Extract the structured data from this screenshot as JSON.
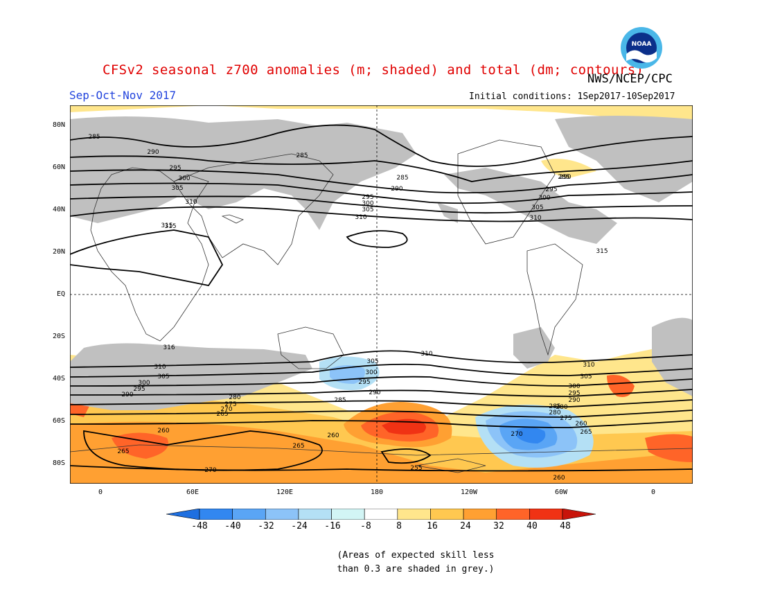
{
  "header": {
    "title": "CFSv2 seasonal z700 anomalies (m; shaded) and total (dm; contours)",
    "source": "NWS/NCEP/CPC",
    "season": "Sep-Oct-Nov 2017",
    "initial_conditions": "Initial conditions: 1Sep2017-10Sep2017",
    "logo_text": "NOAA"
  },
  "map": {
    "lat_labels": [
      "80N",
      "60N",
      "40N",
      "20N",
      "EQ",
      "20S",
      "40S",
      "60S",
      "80S"
    ],
    "lon_labels": [
      "0",
      "60E",
      "120E",
      "180",
      "120W",
      "60W",
      "0"
    ],
    "contour_labels": [
      "285",
      "290",
      "295",
      "300",
      "305",
      "310",
      "315",
      "285",
      "285",
      "290",
      "285",
      "290",
      "295",
      "300",
      "305",
      "310",
      "295",
      "300",
      "305",
      "310",
      "315",
      "315",
      "316",
      "310",
      "305",
      "300",
      "295",
      "290",
      "280",
      "275",
      "270",
      "265",
      "260",
      "265",
      "260",
      "265",
      "270",
      "255",
      "310",
      "305",
      "300",
      "295",
      "290",
      "285",
      "280",
      "260",
      "270",
      "265",
      "260",
      "310",
      "305",
      "300",
      "295",
      "290",
      "285",
      "280",
      "275"
    ],
    "anomaly_regions": {
      "strong_positive": "South Pacific near 180-150W, 55-65S",
      "strong_negative": "Southeast Pacific / Drake Passage near 90W-60W, 60-70S"
    }
  },
  "colorbar": {
    "ticks": [
      "-48",
      "-40",
      "-32",
      "-24",
      "-16",
      "-8",
      "8",
      "16",
      "24",
      "32",
      "40",
      "48"
    ],
    "colors": [
      "#1e6fe0",
      "#3287f0",
      "#5aa5f5",
      "#8cc3f8",
      "#b4e0f5",
      "#d2f5f5",
      "#ffffff",
      "#ffe68c",
      "#ffc850",
      "#ffa032",
      "#ff6428",
      "#f03214",
      "#c8140a"
    ]
  },
  "note": {
    "line1": "(Areas of expected skill less",
    "line2": "than 0.3 are shaded in grey.)"
  }
}
